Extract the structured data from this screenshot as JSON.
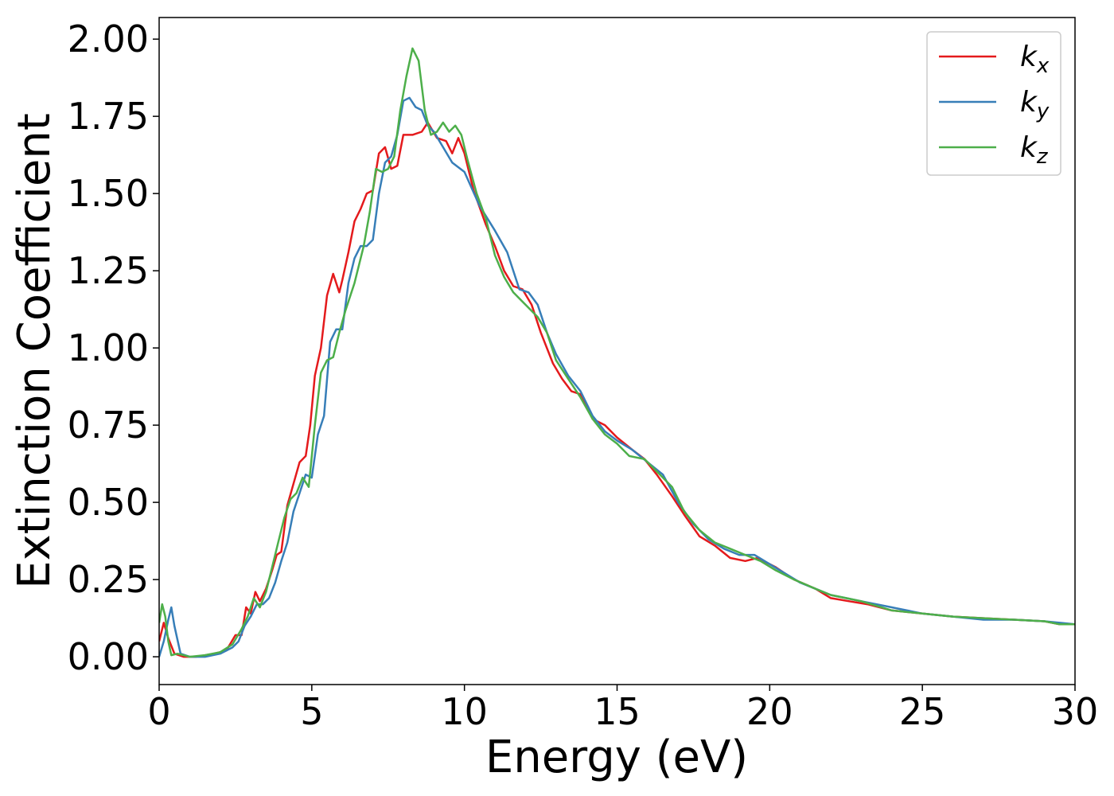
{
  "chart_data": {
    "type": "line",
    "xlabel": "Energy (eV)",
    "ylabel": "Extinction Coefficient",
    "xlim": [
      0,
      30
    ],
    "ylim": [
      -0.09,
      2.07
    ],
    "grid": false,
    "legend_position": "top-right",
    "x_ticks": [
      "0",
      "5",
      "10",
      "15",
      "20",
      "25",
      "30"
    ],
    "y_ticks": [
      "0.00",
      "0.25",
      "0.50",
      "0.75",
      "1.00",
      "1.25",
      "1.50",
      "1.75",
      "2.00"
    ],
    "series": [
      {
        "name": "k",
        "sub": "x",
        "color": "#e41a1c",
        "points": [
          [
            0,
            0.05
          ],
          [
            0.15,
            0.11
          ],
          [
            0.3,
            0.06
          ],
          [
            0.5,
            0.01
          ],
          [
            0.8,
            0.0
          ],
          [
            1.2,
            0.0
          ],
          [
            1.8,
            0.01
          ],
          [
            2.2,
            0.02
          ],
          [
            2.5,
            0.07
          ],
          [
            2.7,
            0.07
          ],
          [
            2.85,
            0.16
          ],
          [
            3.0,
            0.14
          ],
          [
            3.15,
            0.21
          ],
          [
            3.3,
            0.18
          ],
          [
            3.5,
            0.22
          ],
          [
            3.7,
            0.28
          ],
          [
            3.85,
            0.33
          ],
          [
            4.0,
            0.34
          ],
          [
            4.2,
            0.49
          ],
          [
            4.4,
            0.56
          ],
          [
            4.6,
            0.63
          ],
          [
            4.8,
            0.65
          ],
          [
            4.95,
            0.75
          ],
          [
            5.1,
            0.91
          ],
          [
            5.3,
            1.0
          ],
          [
            5.5,
            1.17
          ],
          [
            5.7,
            1.24
          ],
          [
            5.9,
            1.18
          ],
          [
            6.0,
            1.22
          ],
          [
            6.2,
            1.31
          ],
          [
            6.4,
            1.41
          ],
          [
            6.6,
            1.45
          ],
          [
            6.8,
            1.5
          ],
          [
            7.0,
            1.51
          ],
          [
            7.2,
            1.63
          ],
          [
            7.4,
            1.65
          ],
          [
            7.6,
            1.58
          ],
          [
            7.8,
            1.59
          ],
          [
            8.0,
            1.69
          ],
          [
            8.3,
            1.69
          ],
          [
            8.6,
            1.7
          ],
          [
            8.8,
            1.73
          ],
          [
            9.1,
            1.68
          ],
          [
            9.4,
            1.67
          ],
          [
            9.6,
            1.63
          ],
          [
            9.8,
            1.68
          ],
          [
            10.0,
            1.63
          ],
          [
            10.3,
            1.51
          ],
          [
            10.7,
            1.4
          ],
          [
            11.0,
            1.33
          ],
          [
            11.3,
            1.25
          ],
          [
            11.6,
            1.2
          ],
          [
            11.9,
            1.19
          ],
          [
            12.2,
            1.14
          ],
          [
            12.5,
            1.05
          ],
          [
            12.9,
            0.95
          ],
          [
            13.2,
            0.9
          ],
          [
            13.5,
            0.86
          ],
          [
            13.8,
            0.85
          ],
          [
            14.2,
            0.77
          ],
          [
            14.6,
            0.75
          ],
          [
            15.0,
            0.71
          ],
          [
            15.5,
            0.67
          ],
          [
            15.9,
            0.64
          ],
          [
            16.3,
            0.59
          ],
          [
            16.8,
            0.52
          ],
          [
            17.2,
            0.46
          ],
          [
            17.7,
            0.39
          ],
          [
            18.2,
            0.36
          ],
          [
            18.7,
            0.32
          ],
          [
            19.2,
            0.31
          ],
          [
            19.6,
            0.32
          ],
          [
            20.2,
            0.29
          ],
          [
            20.8,
            0.25
          ],
          [
            21.5,
            0.22
          ],
          [
            22.0,
            0.19
          ],
          [
            22.6,
            0.18
          ],
          [
            23.2,
            0.17
          ],
          [
            24.0,
            0.15
          ],
          [
            25.0,
            0.14
          ],
          [
            26.0,
            0.13
          ],
          [
            27.0,
            0.125
          ],
          [
            28.0,
            0.12
          ],
          [
            29.0,
            0.115
          ],
          [
            29.5,
            0.105
          ],
          [
            30,
            0.105
          ]
        ]
      },
      {
        "name": "k",
        "sub": "y",
        "color": "#377eb8",
        "points": [
          [
            0,
            0.0
          ],
          [
            0.15,
            0.05
          ],
          [
            0.3,
            0.12
          ],
          [
            0.4,
            0.16
          ],
          [
            0.5,
            0.1
          ],
          [
            0.7,
            0.01
          ],
          [
            1.0,
            0.0
          ],
          [
            1.5,
            0.0
          ],
          [
            2.0,
            0.01
          ],
          [
            2.4,
            0.03
          ],
          [
            2.6,
            0.05
          ],
          [
            2.8,
            0.1
          ],
          [
            3.0,
            0.13
          ],
          [
            3.2,
            0.17
          ],
          [
            3.4,
            0.17
          ],
          [
            3.6,
            0.19
          ],
          [
            3.8,
            0.24
          ],
          [
            4.0,
            0.31
          ],
          [
            4.2,
            0.37
          ],
          [
            4.4,
            0.47
          ],
          [
            4.6,
            0.53
          ],
          [
            4.8,
            0.59
          ],
          [
            5.0,
            0.58
          ],
          [
            5.2,
            0.72
          ],
          [
            5.4,
            0.78
          ],
          [
            5.6,
            1.02
          ],
          [
            5.8,
            1.06
          ],
          [
            6.0,
            1.06
          ],
          [
            6.2,
            1.21
          ],
          [
            6.4,
            1.29
          ],
          [
            6.6,
            1.33
          ],
          [
            6.8,
            1.33
          ],
          [
            7.0,
            1.35
          ],
          [
            7.2,
            1.5
          ],
          [
            7.4,
            1.6
          ],
          [
            7.6,
            1.62
          ],
          [
            7.8,
            1.69
          ],
          [
            8.0,
            1.8
          ],
          [
            8.2,
            1.81
          ],
          [
            8.4,
            1.78
          ],
          [
            8.6,
            1.77
          ],
          [
            8.8,
            1.72
          ],
          [
            9.0,
            1.7
          ],
          [
            9.3,
            1.65
          ],
          [
            9.6,
            1.6
          ],
          [
            10.0,
            1.57
          ],
          [
            10.5,
            1.46
          ],
          [
            11.0,
            1.38
          ],
          [
            11.4,
            1.31
          ],
          [
            11.8,
            1.19
          ],
          [
            12.1,
            1.18
          ],
          [
            12.4,
            1.14
          ],
          [
            12.7,
            1.05
          ],
          [
            13.0,
            0.98
          ],
          [
            13.4,
            0.91
          ],
          [
            13.8,
            0.86
          ],
          [
            14.2,
            0.78
          ],
          [
            14.6,
            0.73
          ],
          [
            15.0,
            0.7
          ],
          [
            15.5,
            0.67
          ],
          [
            16.0,
            0.63
          ],
          [
            16.5,
            0.59
          ],
          [
            17.0,
            0.5
          ],
          [
            17.5,
            0.43
          ],
          [
            18.0,
            0.38
          ],
          [
            18.5,
            0.35
          ],
          [
            19.0,
            0.33
          ],
          [
            19.5,
            0.33
          ],
          [
            20.0,
            0.3
          ],
          [
            20.5,
            0.27
          ],
          [
            21.0,
            0.24
          ],
          [
            21.5,
            0.22
          ],
          [
            22.0,
            0.2
          ],
          [
            22.5,
            0.19
          ],
          [
            23.0,
            0.18
          ],
          [
            24.0,
            0.16
          ],
          [
            25.0,
            0.14
          ],
          [
            26.0,
            0.13
          ],
          [
            27.0,
            0.12
          ],
          [
            28.0,
            0.12
          ],
          [
            29.0,
            0.115
          ],
          [
            29.5,
            0.11
          ],
          [
            30,
            0.105
          ]
        ]
      },
      {
        "name": "k",
        "sub": "z",
        "color": "#4daf4a",
        "points": [
          [
            0,
            0.11
          ],
          [
            0.1,
            0.17
          ],
          [
            0.2,
            0.13
          ],
          [
            0.3,
            0.05
          ],
          [
            0.4,
            0.005
          ],
          [
            0.6,
            0.01
          ],
          [
            1.0,
            0.0
          ],
          [
            1.5,
            0.005
          ],
          [
            2.0,
            0.015
          ],
          [
            2.4,
            0.04
          ],
          [
            2.7,
            0.09
          ],
          [
            2.9,
            0.13
          ],
          [
            3.1,
            0.19
          ],
          [
            3.3,
            0.16
          ],
          [
            3.5,
            0.21
          ],
          [
            3.7,
            0.29
          ],
          [
            3.9,
            0.37
          ],
          [
            4.1,
            0.45
          ],
          [
            4.3,
            0.51
          ],
          [
            4.5,
            0.53
          ],
          [
            4.7,
            0.58
          ],
          [
            4.9,
            0.55
          ],
          [
            5.1,
            0.75
          ],
          [
            5.3,
            0.92
          ],
          [
            5.5,
            0.96
          ],
          [
            5.7,
            0.97
          ],
          [
            5.9,
            1.05
          ],
          [
            6.1,
            1.12
          ],
          [
            6.4,
            1.21
          ],
          [
            6.7,
            1.33
          ],
          [
            6.9,
            1.44
          ],
          [
            7.1,
            1.58
          ],
          [
            7.3,
            1.57
          ],
          [
            7.5,
            1.58
          ],
          [
            7.7,
            1.62
          ],
          [
            7.9,
            1.77
          ],
          [
            8.1,
            1.88
          ],
          [
            8.3,
            1.97
          ],
          [
            8.5,
            1.93
          ],
          [
            8.7,
            1.77
          ],
          [
            8.9,
            1.69
          ],
          [
            9.1,
            1.7
          ],
          [
            9.3,
            1.73
          ],
          [
            9.5,
            1.7
          ],
          [
            9.7,
            1.72
          ],
          [
            9.9,
            1.69
          ],
          [
            10.1,
            1.61
          ],
          [
            10.4,
            1.5
          ],
          [
            10.7,
            1.42
          ],
          [
            11.0,
            1.3
          ],
          [
            11.3,
            1.23
          ],
          [
            11.6,
            1.18
          ],
          [
            12.0,
            1.14
          ],
          [
            12.4,
            1.1
          ],
          [
            12.7,
            1.05
          ],
          [
            13.0,
            0.96
          ],
          [
            13.4,
            0.9
          ],
          [
            13.8,
            0.84
          ],
          [
            14.2,
            0.77
          ],
          [
            14.6,
            0.72
          ],
          [
            15.0,
            0.69
          ],
          [
            15.4,
            0.65
          ],
          [
            15.9,
            0.64
          ],
          [
            16.3,
            0.6
          ],
          [
            16.8,
            0.55
          ],
          [
            17.2,
            0.47
          ],
          [
            17.7,
            0.41
          ],
          [
            18.2,
            0.37
          ],
          [
            18.7,
            0.35
          ],
          [
            19.2,
            0.33
          ],
          [
            19.7,
            0.31
          ],
          [
            20.2,
            0.28
          ],
          [
            20.8,
            0.25
          ],
          [
            21.5,
            0.22
          ],
          [
            22.0,
            0.2
          ],
          [
            22.5,
            0.19
          ],
          [
            23.0,
            0.18
          ],
          [
            24.0,
            0.15
          ],
          [
            25.0,
            0.14
          ],
          [
            26.0,
            0.13
          ],
          [
            27.0,
            0.125
          ],
          [
            28.0,
            0.12
          ],
          [
            29.0,
            0.115
          ],
          [
            29.5,
            0.105
          ],
          [
            30,
            0.105
          ]
        ]
      }
    ]
  }
}
